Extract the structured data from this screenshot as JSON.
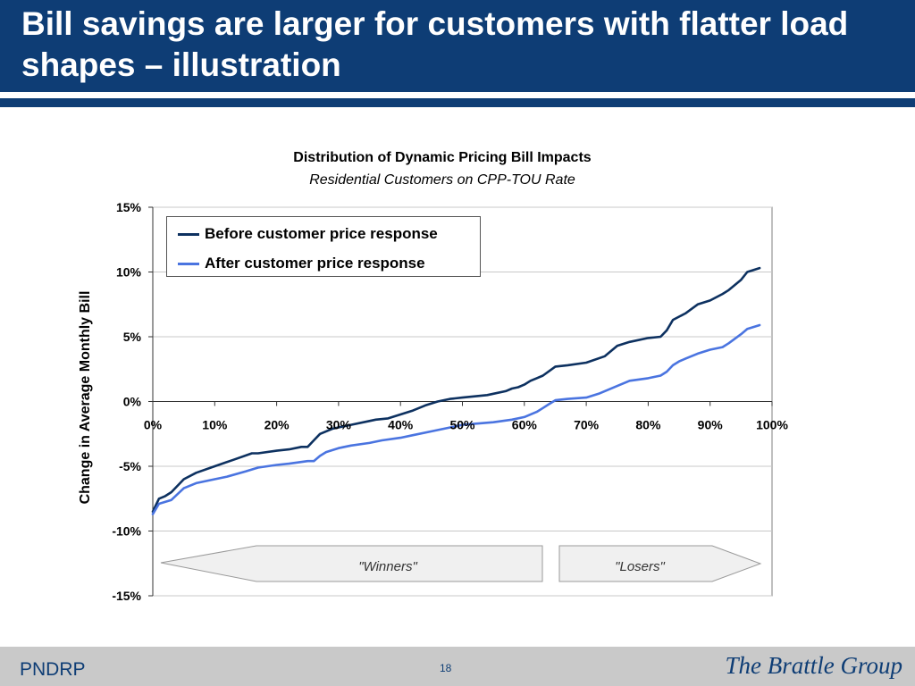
{
  "slide": {
    "title": "Bill savings are larger for customers with flatter load shapes – illustration",
    "footer_left": "PNDRP",
    "page_number": "18",
    "logo_text": "The Brattle Group"
  },
  "colors": {
    "header": "#0e3d75",
    "series_before": "#0d3160",
    "series_after": "#4a74e0",
    "footer": "#c9c9c9"
  },
  "chart_data": {
    "type": "line",
    "title": "Distribution of Dynamic Pricing Bill Impacts",
    "subtitle": "Residential Customers on  CPP-TOU Rate",
    "xlabel": "",
    "ylabel": "Change in Average Monthly Bill",
    "xlim": [
      0,
      100
    ],
    "ylim": [
      -15,
      15
    ],
    "x_ticks": [
      "0%",
      "10%",
      "20%",
      "30%",
      "40%",
      "50%",
      "60%",
      "70%",
      "80%",
      "90%",
      "100%"
    ],
    "y_ticks": [
      "15%",
      "10%",
      "5%",
      "0%",
      "-5%",
      "-10%",
      "-15%"
    ],
    "grid": "horizontal",
    "legend_position": "top-left",
    "series": [
      {
        "name": "Before customer price response",
        "x": [
          0,
          1,
          2,
          3,
          5,
          7,
          10,
          13,
          16,
          17,
          20,
          22,
          24,
          25,
          26,
          27,
          28,
          29,
          30,
          32,
          35,
          36,
          38,
          40,
          42,
          44,
          46,
          48,
          50,
          52,
          54,
          55,
          57,
          58,
          59,
          60,
          61,
          62,
          63,
          65,
          67,
          70,
          73,
          75,
          77,
          80,
          82,
          83,
          84,
          86,
          88,
          90,
          92,
          93,
          95,
          96,
          98
        ],
        "y": [
          -8.5,
          -7.5,
          -7.3,
          -7.0,
          -6.0,
          -5.5,
          -5.0,
          -4.5,
          -4.0,
          -4.0,
          -3.8,
          -3.7,
          -3.5,
          -3.5,
          -3.0,
          -2.5,
          -2.3,
          -2.1,
          -2.0,
          -1.8,
          -1.5,
          -1.4,
          -1.3,
          -1.0,
          -0.7,
          -0.3,
          0.0,
          0.2,
          0.3,
          0.4,
          0.5,
          0.6,
          0.8,
          1.0,
          1.1,
          1.3,
          1.6,
          1.8,
          2.0,
          2.7,
          2.8,
          3.0,
          3.5,
          4.3,
          4.6,
          4.9,
          5.0,
          5.5,
          6.3,
          6.8,
          7.5,
          7.8,
          8.3,
          8.6,
          9.4,
          10.0,
          10.3
        ]
      },
      {
        "name": "After customer price response",
        "x": [
          0,
          1,
          3,
          5,
          7,
          10,
          12,
          15,
          17,
          20,
          22,
          25,
          26,
          27,
          28,
          30,
          32,
          35,
          37,
          40,
          42,
          45,
          47,
          50,
          55,
          58,
          60,
          62,
          63,
          64,
          65,
          67,
          70,
          72,
          75,
          77,
          80,
          82,
          83,
          84,
          85,
          86,
          88,
          90,
          92,
          93,
          95,
          96,
          98
        ],
        "y": [
          -8.7,
          -7.9,
          -7.6,
          -6.7,
          -6.3,
          -6.0,
          -5.8,
          -5.4,
          -5.1,
          -4.9,
          -4.8,
          -4.6,
          -4.6,
          -4.2,
          -3.9,
          -3.6,
          -3.4,
          -3.2,
          -3.0,
          -2.8,
          -2.6,
          -2.3,
          -2.1,
          -1.8,
          -1.6,
          -1.4,
          -1.2,
          -0.8,
          -0.5,
          -0.2,
          0.1,
          0.2,
          0.3,
          0.6,
          1.2,
          1.6,
          1.8,
          2.0,
          2.3,
          2.8,
          3.1,
          3.3,
          3.7,
          4.0,
          4.2,
          4.5,
          5.2,
          5.6,
          5.9
        ]
      }
    ],
    "annotations": [
      {
        "label": "\"Winners\""
      },
      {
        "label": "\"Losers\""
      }
    ]
  }
}
